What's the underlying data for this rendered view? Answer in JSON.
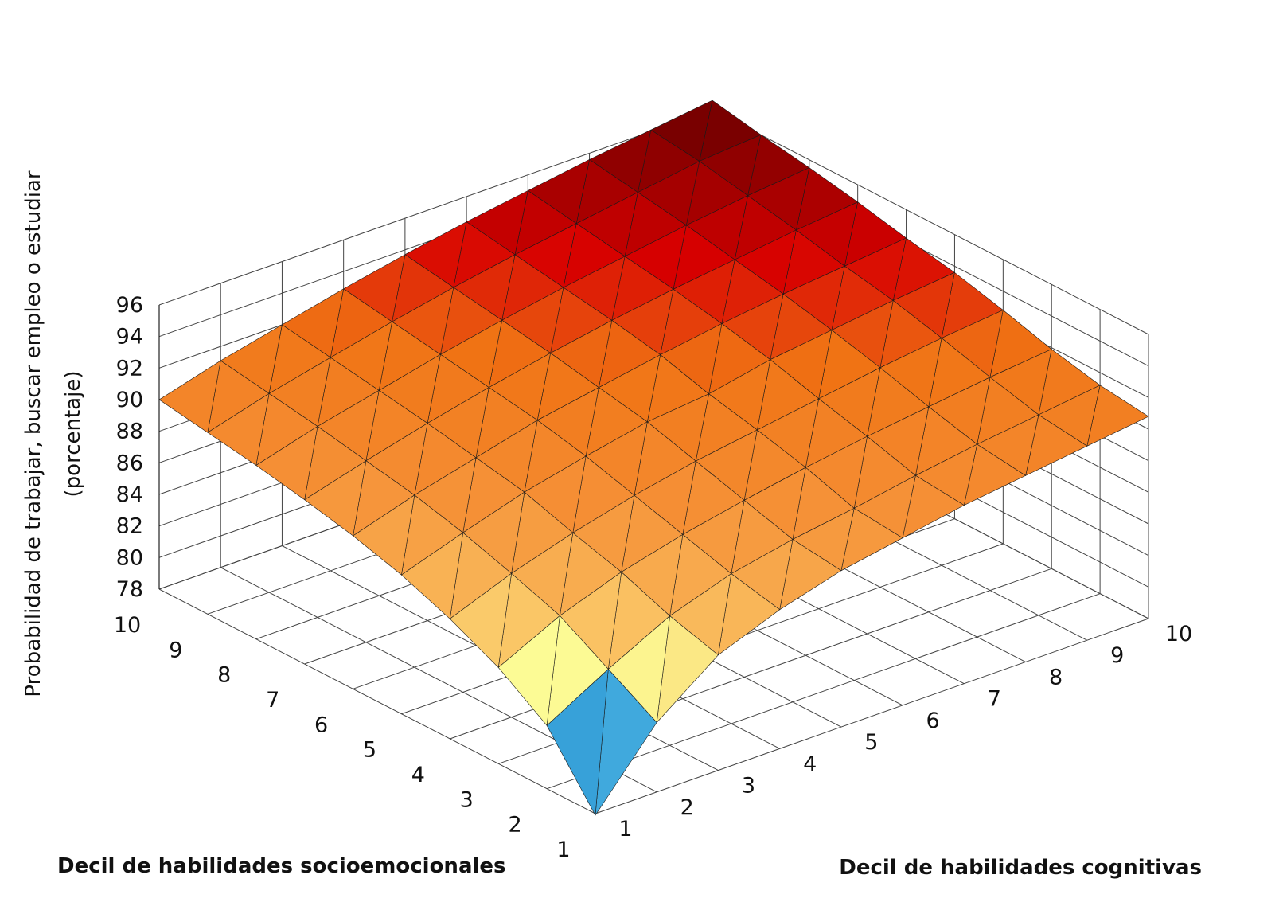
{
  "chart_data": {
    "type": "surface3d",
    "title": "",
    "xlabel": "Decil de habilidades cognitivas",
    "ylabel": "Decil de habilidades socioemocionales",
    "zlabel_lines": [
      "Probabilidad de trabajar, buscar empleo o estudiar",
      "(porcentaje)"
    ],
    "x_ticks": [
      "1",
      "2",
      "3",
      "4",
      "5",
      "6",
      "7",
      "8",
      "9",
      "10"
    ],
    "y_ticks": [
      "1",
      "2",
      "3",
      "4",
      "5",
      "6",
      "7",
      "8",
      "9",
      "10"
    ],
    "z_ticks": [
      "78",
      "80",
      "82",
      "84",
      "86",
      "88",
      "90",
      "92",
      "94",
      "96"
    ],
    "zlim": [
      78,
      96
    ],
    "grid": true,
    "colormap": "blue-cyan-yellow-orange-red",
    "note": "z[i][j]: i = decil socioemocional (1..10), j = decil cognitivo (1..10)",
    "z": [
      [
        77.9,
        82.4,
        85.3,
        86.8,
        87.9,
        88.6,
        89.3,
        89.8,
        90.3,
        90.8
      ],
      [
        82.0,
        84.2,
        86.2,
        87.5,
        88.3,
        88.9,
        89.6,
        90.2,
        90.7,
        91.2
      ],
      [
        84.1,
        86.0,
        87.4,
        88.4,
        89.2,
        89.9,
        90.5,
        91.0,
        91.5,
        91.9
      ],
      [
        85.6,
        87.1,
        88.3,
        89.3,
        90.1,
        90.7,
        91.3,
        91.9,
        92.4,
        92.8
      ],
      [
        86.8,
        88.1,
        89.3,
        90.2,
        91.0,
        91.4,
        92.2,
        92.7,
        93.2,
        93.6
      ],
      [
        87.7,
        88.9,
        89.9,
        90.9,
        91.6,
        92.3,
        92.9,
        93.4,
        93.8,
        94.2
      ],
      [
        88.4,
        89.5,
        90.5,
        91.4,
        92.2,
        92.9,
        93.5,
        94.0,
        94.5,
        94.9
      ],
      [
        89.0,
        90.1,
        91.0,
        91.9,
        92.7,
        93.4,
        94.0,
        94.6,
        95.1,
        95.5
      ],
      [
        89.5,
        90.6,
        91.5,
        92.4,
        93.2,
        93.9,
        94.5,
        95.1,
        95.7,
        96.0
      ],
      [
        90.0,
        91.1,
        92.0,
        92.9,
        93.7,
        94.4,
        95.0,
        95.6,
        96.1,
        96.6
      ]
    ]
  }
}
